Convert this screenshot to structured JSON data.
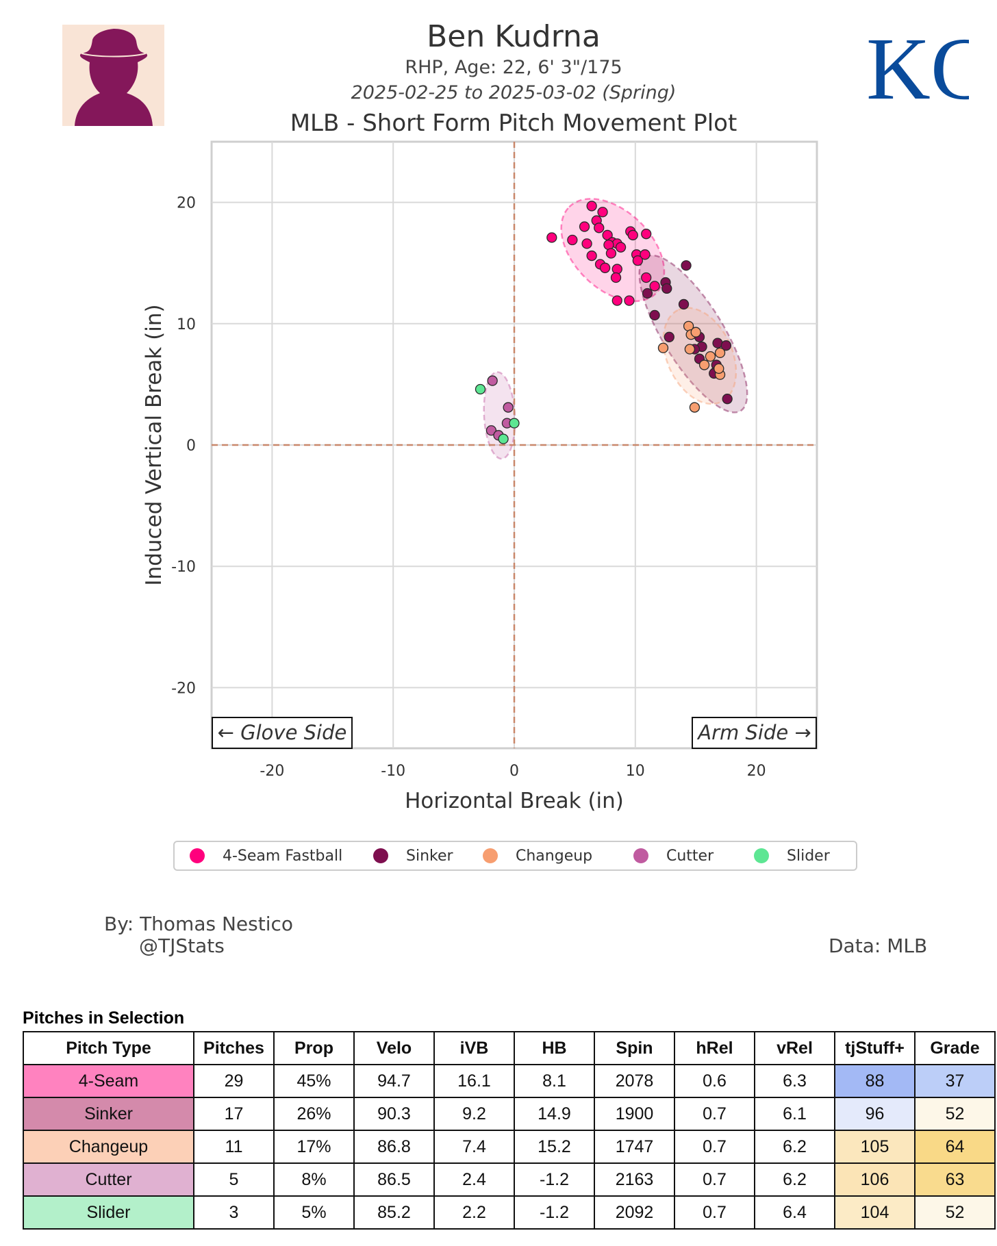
{
  "header": {
    "name": "Ben Kudrna",
    "info": "RHP, Age: 22, 6' 3\"/175",
    "date_range": "2025-02-25 to 2025-03-02 (Spring)",
    "plot_title": "MLB - Short Form Pitch Movement Plot",
    "headshot_icon": "player-silhouette-icon",
    "logo_text": "KC",
    "logo_color": "#0a4b9b"
  },
  "chart_data": {
    "type": "scatter",
    "title": "MLB - Short Form Pitch Movement Plot",
    "xlabel": "Horizontal Break (in)",
    "ylabel": "Induced Vertical Break (in)",
    "xlim": [
      -25,
      25
    ],
    "ylim": [
      -25,
      25
    ],
    "xticks": [
      -20,
      -10,
      0,
      10,
      20
    ],
    "yticks": [
      -20,
      -10,
      0,
      10,
      20
    ],
    "grid": true,
    "annotations": {
      "glove": "← Glove Side",
      "arm": "Arm Side →"
    },
    "legend_position": "bottom",
    "series": [
      {
        "name": "4-Seam Fastball",
        "color": "#ff007d",
        "points": [
          [
            6.4,
            19.7
          ],
          [
            7.3,
            19.2
          ],
          [
            6.8,
            18.5
          ],
          [
            7.0,
            17.9
          ],
          [
            5.8,
            18.0
          ],
          [
            3.1,
            17.1
          ],
          [
            4.8,
            16.9
          ],
          [
            7.7,
            17.3
          ],
          [
            8.1,
            16.7
          ],
          [
            8.5,
            16.6
          ],
          [
            9.6,
            17.6
          ],
          [
            9.8,
            17.3
          ],
          [
            10.9,
            17.4
          ],
          [
            6.0,
            16.6
          ],
          [
            7.8,
            16.5
          ],
          [
            8.8,
            16.3
          ],
          [
            8.0,
            15.8
          ],
          [
            10.1,
            15.7
          ],
          [
            10.8,
            15.7
          ],
          [
            6.4,
            15.6
          ],
          [
            7.1,
            14.9
          ],
          [
            7.5,
            14.6
          ],
          [
            8.5,
            14.5
          ],
          [
            10.2,
            15.2
          ],
          [
            8.4,
            13.8
          ],
          [
            10.9,
            13.8
          ],
          [
            11.6,
            13.1
          ],
          [
            8.5,
            11.9
          ],
          [
            9.5,
            11.9
          ]
        ]
      },
      {
        "name": "Sinker",
        "color": "#7e0f4f",
        "points": [
          [
            14.2,
            14.8
          ],
          [
            12.5,
            13.4
          ],
          [
            12.6,
            12.9
          ],
          [
            11.0,
            12.5
          ],
          [
            14.0,
            11.6
          ],
          [
            11.6,
            10.7
          ],
          [
            12.8,
            8.9
          ],
          [
            15.3,
            8.9
          ],
          [
            15.5,
            8.1
          ],
          [
            16.8,
            8.4
          ],
          [
            17.5,
            8.2
          ],
          [
            14.9,
            7.9
          ],
          [
            15.3,
            7.1
          ],
          [
            16.7,
            6.6
          ],
          [
            16.6,
            6.0
          ],
          [
            16.5,
            5.9
          ],
          [
            17.6,
            3.8
          ]
        ]
      },
      {
        "name": "Changeup",
        "color": "#f79e70",
        "points": [
          [
            14.4,
            9.8
          ],
          [
            14.6,
            9.1
          ],
          [
            15.0,
            9.3
          ],
          [
            12.3,
            8.0
          ],
          [
            14.5,
            7.9
          ],
          [
            16.2,
            7.3
          ],
          [
            17.0,
            7.6
          ],
          [
            15.7,
            6.6
          ],
          [
            17.0,
            5.8
          ],
          [
            16.9,
            6.3
          ],
          [
            14.9,
            3.1
          ]
        ]
      },
      {
        "name": "Cutter",
        "color": "#c05ba0",
        "points": [
          [
            -1.8,
            5.3
          ],
          [
            -0.5,
            3.1
          ],
          [
            -0.6,
            1.8
          ],
          [
            -1.9,
            1.2
          ],
          [
            -1.3,
            0.8
          ]
        ]
      },
      {
        "name": "Slider",
        "color": "#5de693",
        "points": [
          [
            -2.8,
            4.6
          ],
          [
            0.0,
            1.8
          ],
          [
            -0.9,
            0.5
          ]
        ]
      }
    ],
    "ellipses": [
      {
        "color": "#ff007d"
      },
      {
        "color": "#7e0f4f"
      },
      {
        "color": "#f79e70"
      },
      {
        "color": "#c05ba0"
      }
    ]
  },
  "credits": {
    "by": "By: Thomas Nestico",
    "handle": "@TJStats",
    "data": "Data: MLB"
  },
  "table": {
    "title": "Pitches in Selection",
    "columns": [
      "Pitch Type",
      "Pitches",
      "Prop",
      "Velo",
      "iVB",
      "HB",
      "Spin",
      "hRel",
      "vRel",
      "tjStuff+",
      "Grade"
    ],
    "rows": [
      {
        "cells": [
          "4-Seam",
          "29",
          "45%",
          "94.7",
          "16.1",
          "8.1",
          "2078",
          "0.6",
          "6.3",
          "88",
          "37"
        ],
        "type_color": "#ff82bf",
        "stuff_color": "#a3b9f5",
        "grade_color": "#bccef8"
      },
      {
        "cells": [
          "Sinker",
          "17",
          "26%",
          "90.3",
          "9.2",
          "14.9",
          "1900",
          "0.7",
          "6.1",
          "96",
          "52"
        ],
        "type_color": "#d48aab",
        "stuff_color": "#e4eafb",
        "grade_color": "#fdf7e8"
      },
      {
        "cells": [
          "Changeup",
          "11",
          "17%",
          "86.8",
          "7.4",
          "15.2",
          "1747",
          "0.7",
          "6.2",
          "105",
          "64"
        ],
        "type_color": "#fcd0b7",
        "stuff_color": "#fbe7bd",
        "grade_color": "#f9d987"
      },
      {
        "cells": [
          "Cutter",
          "5",
          "8%",
          "86.5",
          "2.4",
          "-1.2",
          "2163",
          "0.7",
          "6.2",
          "106",
          "63"
        ],
        "type_color": "#e0b1d1",
        "stuff_color": "#fbe4b6",
        "grade_color": "#f9db8e"
      },
      {
        "cells": [
          "Slider",
          "3",
          "5%",
          "85.2",
          "2.2",
          "-1.2",
          "2092",
          "0.7",
          "6.4",
          "104",
          "52"
        ],
        "type_color": "#b3f0ca",
        "stuff_color": "#fcebc6",
        "grade_color": "#fdf7e8"
      }
    ]
  }
}
